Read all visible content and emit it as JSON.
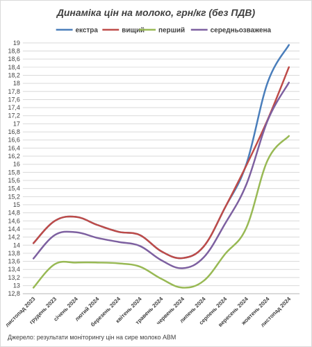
{
  "chart_data": {
    "type": "line",
    "title": "Динаміка цін на молоко, грн/кг (без ПДВ)",
    "source": "Джерело: результати моніторингу цін на сире молоко АВМ",
    "categories": [
      "листопад 2023",
      "грудень 2023",
      "січень 2024",
      "лютий 2024",
      "березень 2024",
      "квітень 2024",
      "травень 2024",
      "червень 2024",
      "липень 2024",
      "серпень 2024",
      "вересень 2024",
      "жовтень 2024",
      "листопад 2024"
    ],
    "ylim": [
      12.8,
      19
    ],
    "ytick_step": 0.2,
    "yticks": [
      "12,8",
      "13",
      "13,2",
      "13,4",
      "13,6",
      "13,8",
      "14",
      "14,2",
      "14,4",
      "14,6",
      "14,8",
      "15",
      "15,2",
      "15,4",
      "15,6",
      "15,8",
      "16",
      "16,2",
      "16,4",
      "16,6",
      "16,8",
      "17",
      "17,2",
      "17,4",
      "17,6",
      "17,8",
      "18",
      "18,2",
      "18,4",
      "18,6",
      "18,8",
      "19"
    ],
    "grid": true,
    "legend_position": "top",
    "series": [
      {
        "name": "екстра",
        "color": "#4a7ebb",
        "values": [
          14.05,
          14.6,
          14.7,
          14.5,
          14.33,
          14.25,
          13.85,
          13.68,
          13.97,
          14.93,
          16.0,
          18.02,
          18.95
        ]
      },
      {
        "name": "вищий",
        "color": "#be4b48",
        "values": [
          14.05,
          14.6,
          14.7,
          14.5,
          14.33,
          14.25,
          13.85,
          13.68,
          13.97,
          14.93,
          15.97,
          17.1,
          18.4
        ]
      },
      {
        "name": "перший",
        "color": "#98b954",
        "values": [
          12.95,
          13.53,
          13.57,
          13.57,
          13.55,
          13.47,
          13.17,
          12.95,
          13.12,
          13.78,
          14.43,
          16.1,
          16.7
        ]
      },
      {
        "name": "середньозважена",
        "color": "#7d60a0",
        "values": [
          13.67,
          14.25,
          14.32,
          14.18,
          14.08,
          13.98,
          13.63,
          13.43,
          13.7,
          14.53,
          15.5,
          17.08,
          18.02
        ]
      }
    ]
  }
}
